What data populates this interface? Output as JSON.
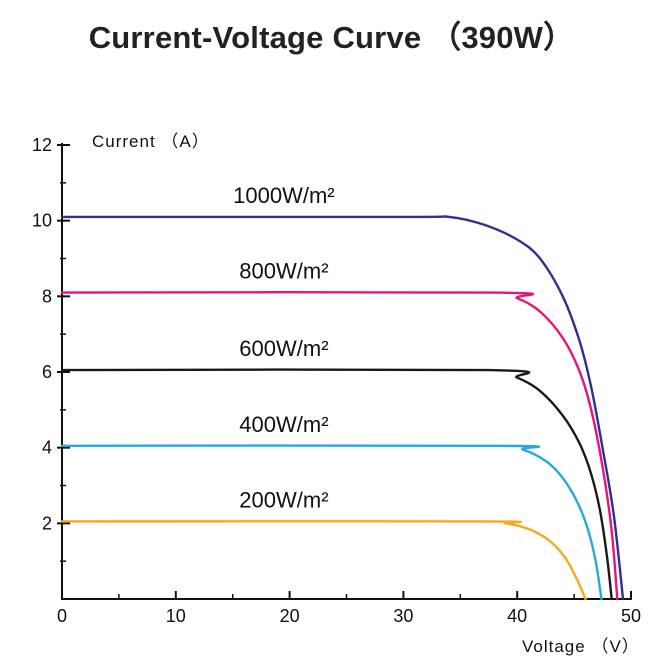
{
  "chart_data": {
    "type": "line",
    "title": "Current-Voltage Curve （390W）",
    "xlabel": "Voltage （V）",
    "ylabel": "Current （A）",
    "xlim": [
      0,
      50
    ],
    "ylim": [
      0,
      12
    ],
    "xticks": [
      0,
      10,
      20,
      30,
      40,
      50
    ],
    "yticks": [
      2,
      4,
      6,
      8,
      10,
      12
    ],
    "grid": false,
    "series": [
      {
        "name": "1000W/m²",
        "color": "#2e3192",
        "isc": 10.1,
        "voc": 49.3,
        "knee": 36.0,
        "points": [
          [
            0,
            10.1
          ],
          [
            30,
            10.1
          ],
          [
            34,
            10.1
          ],
          [
            37,
            9.9
          ],
          [
            40,
            9.5
          ],
          [
            42,
            9.0
          ],
          [
            44,
            8.0
          ],
          [
            45.5,
            6.8
          ],
          [
            46.5,
            5.6
          ],
          [
            47.5,
            4.0
          ],
          [
            48.5,
            2.2
          ],
          [
            49.3,
            0
          ]
        ]
      },
      {
        "name": "800W/m²",
        "color": "#e6147b",
        "isc": 8.1,
        "voc": 48.8,
        "knee": 38.0,
        "points": [
          [
            0,
            8.1
          ],
          [
            38,
            8.1
          ],
          [
            40,
            7.95
          ],
          [
            42,
            7.6
          ],
          [
            44,
            6.9
          ],
          [
            45.5,
            6.0
          ],
          [
            46.5,
            5.0
          ],
          [
            47.5,
            3.5
          ],
          [
            48.3,
            1.8
          ],
          [
            48.8,
            0
          ]
        ]
      },
      {
        "name": "600W/m²",
        "color": "#1a1a1a",
        "isc": 6.05,
        "voc": 48.3,
        "knee": 37.5,
        "points": [
          [
            0,
            6.05
          ],
          [
            37.5,
            6.05
          ],
          [
            40,
            5.85
          ],
          [
            42,
            5.5
          ],
          [
            44,
            4.85
          ],
          [
            45.5,
            4.1
          ],
          [
            46.5,
            3.3
          ],
          [
            47.3,
            2.3
          ],
          [
            47.9,
            1.1
          ],
          [
            48.3,
            0
          ]
        ]
      },
      {
        "name": "400W/m²",
        "color": "#29a8e0",
        "isc": 4.05,
        "voc": 47.4,
        "knee": 38.5,
        "points": [
          [
            0,
            4.05
          ],
          [
            38.5,
            4.05
          ],
          [
            40.5,
            3.95
          ],
          [
            42.5,
            3.65
          ],
          [
            44,
            3.2
          ],
          [
            45.3,
            2.55
          ],
          [
            46.2,
            1.85
          ],
          [
            46.9,
            1.0
          ],
          [
            47.4,
            0
          ]
        ]
      },
      {
        "name": "200W/m²",
        "color": "#f7a81b",
        "isc": 2.05,
        "voc": 46.0,
        "knee": 37.0,
        "points": [
          [
            0,
            2.05
          ],
          [
            37,
            2.05
          ],
          [
            39,
            2.0
          ],
          [
            41,
            1.85
          ],
          [
            42.8,
            1.55
          ],
          [
            44.2,
            1.1
          ],
          [
            45.2,
            0.55
          ],
          [
            46.0,
            0
          ]
        ]
      }
    ]
  }
}
